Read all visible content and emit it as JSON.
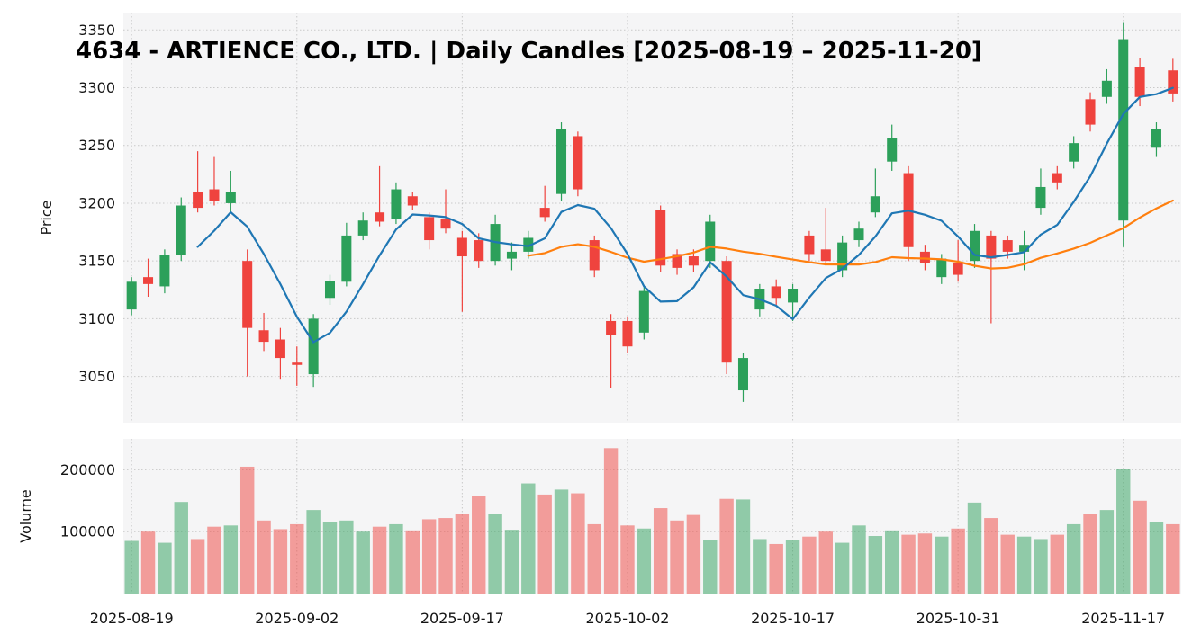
{
  "title": "4634 - ARTIENCE CO., LTD. | Daily Candles [2025-08-19 – 2025-11-20]",
  "axes": {
    "price_label": "Price",
    "volume_label": "Volume",
    "price_ticks": [
      3050,
      3100,
      3150,
      3200,
      3250,
      3300,
      3350
    ],
    "volume_ticks": [
      100000,
      200000
    ],
    "date_ticks": [
      {
        "index": 0,
        "label": "2025-08-19"
      },
      {
        "index": 10,
        "label": "2025-09-02"
      },
      {
        "index": 20,
        "label": "2025-09-17"
      },
      {
        "index": 30,
        "label": "2025-10-02"
      },
      {
        "index": 40,
        "label": "2025-10-17"
      },
      {
        "index": 50,
        "label": "2025-10-31"
      },
      {
        "index": 60,
        "label": "2025-11-17"
      }
    ]
  },
  "style": {
    "up_color": "#2ca05a",
    "down_color": "#ef433e",
    "ma_fast_color": "#1f77b4",
    "ma_slow_color": "#ff7f0e",
    "panel_bg": "#f5f5f6",
    "grid_color": "#c9c9c9",
    "tick_text_color": "#141414",
    "title_color": "#000000",
    "volume_opacity": 0.5
  },
  "chart_data": {
    "type": "candlestick",
    "symbol": "4634",
    "company": "ARTIENCE CO., LTD.",
    "interval": "Daily Candles",
    "date_range": [
      "2025-08-19",
      "2025-11-20"
    ],
    "ylabel": "Price",
    "ylabel_volume": "Volume",
    "ylim_price": [
      3010,
      3365
    ],
    "ylim_volume": [
      0,
      250000
    ],
    "grid": true,
    "overlays": [
      {
        "name": "ma-fast",
        "window": 5
      },
      {
        "name": "ma-slow",
        "window": 25
      }
    ],
    "dates": [
      "2025-08-19",
      "2025-08-20",
      "2025-08-21",
      "2025-08-22",
      "2025-08-25",
      "2025-08-26",
      "2025-08-27",
      "2025-08-28",
      "2025-08-29",
      "2025-09-01",
      "2025-09-02",
      "2025-09-03",
      "2025-09-04",
      "2025-09-05",
      "2025-09-08",
      "2025-09-09",
      "2025-09-10",
      "2025-09-11",
      "2025-09-12",
      "2025-09-16",
      "2025-09-17",
      "2025-09-18",
      "2025-09-19",
      "2025-09-22",
      "2025-09-24",
      "2025-09-25",
      "2025-09-26",
      "2025-09-29",
      "2025-09-30",
      "2025-10-01",
      "2025-10-02",
      "2025-10-03",
      "2025-10-06",
      "2025-10-07",
      "2025-10-08",
      "2025-10-09",
      "2025-10-10",
      "2025-10-14",
      "2025-10-15",
      "2025-10-16",
      "2025-10-17",
      "2025-10-20",
      "2025-10-21",
      "2025-10-22",
      "2025-10-23",
      "2025-10-24",
      "2025-10-27",
      "2025-10-28",
      "2025-10-29",
      "2025-10-30",
      "2025-10-31",
      "2025-11-04",
      "2025-11-05",
      "2025-11-06",
      "2025-11-07",
      "2025-11-10",
      "2025-11-11",
      "2025-11-12",
      "2025-11-13",
      "2025-11-14",
      "2025-11-17",
      "2025-11-18",
      "2025-11-19",
      "2025-11-20"
    ],
    "open": [
      3108,
      3136,
      3128,
      3155,
      3210,
      3212,
      3200,
      3150,
      3090,
      3082,
      3062,
      3052,
      3118,
      3132,
      3172,
      3192,
      3186,
      3206,
      3188,
      3186,
      3170,
      3168,
      3150,
      3152,
      3158,
      3196,
      3208,
      3258,
      3168,
      3098,
      3098,
      3088,
      3194,
      3156,
      3154,
      3150,
      3150,
      3038,
      3108,
      3128,
      3114,
      3172,
      3160,
      3142,
      3168,
      3192,
      3236,
      3226,
      3158,
      3136,
      3148,
      3150,
      3172,
      3168,
      3158,
      3196,
      3226,
      3236,
      3290,
      3292,
      3185,
      3318,
      3248,
      3315
    ],
    "high": [
      3136,
      3152,
      3160,
      3205,
      3245,
      3240,
      3228,
      3160,
      3105,
      3092,
      3076,
      3104,
      3138,
      3183,
      3192,
      3232,
      3218,
      3210,
      3192,
      3212,
      3176,
      3174,
      3190,
      3166,
      3176,
      3215,
      3270,
      3262,
      3172,
      3104,
      3102,
      3128,
      3198,
      3160,
      3160,
      3190,
      3154,
      3070,
      3130,
      3134,
      3130,
      3176,
      3196,
      3172,
      3184,
      3230,
      3268,
      3232,
      3164,
      3156,
      3168,
      3182,
      3176,
      3172,
      3176,
      3230,
      3232,
      3258,
      3296,
      3316,
      3356,
      3326,
      3270,
      3325
    ],
    "low": [
      3103,
      3119,
      3122,
      3150,
      3192,
      3198,
      3192,
      3050,
      3072,
      3048,
      3042,
      3041,
      3112,
      3128,
      3168,
      3180,
      3182,
      3194,
      3160,
      3174,
      3106,
      3144,
      3146,
      3142,
      3152,
      3184,
      3202,
      3206,
      3136,
      3040,
      3070,
      3082,
      3140,
      3138,
      3140,
      3144,
      3052,
      3028,
      3102,
      3112,
      3098,
      3150,
      3146,
      3136,
      3162,
      3188,
      3228,
      3150,
      3142,
      3130,
      3132,
      3144,
      3096,
      3152,
      3142,
      3190,
      3212,
      3230,
      3262,
      3286,
      3162,
      3284,
      3240,
      3288
    ],
    "close": [
      3132,
      3130,
      3155,
      3198,
      3196,
      3202,
      3210,
      3092,
      3080,
      3066,
      3060,
      3100,
      3133,
      3172,
      3185,
      3184,
      3212,
      3198,
      3168,
      3178,
      3154,
      3150,
      3182,
      3158,
      3170,
      3188,
      3264,
      3212,
      3142,
      3086,
      3076,
      3124,
      3146,
      3144,
      3146,
      3184,
      3062,
      3066,
      3126,
      3118,
      3126,
      3156,
      3150,
      3166,
      3178,
      3206,
      3256,
      3162,
      3148,
      3152,
      3138,
      3176,
      3152,
      3158,
      3164,
      3214,
      3218,
      3252,
      3268,
      3306,
      3342,
      3292,
      3264,
      3295
    ],
    "volume": [
      85000,
      100000,
      82000,
      148000,
      88000,
      108000,
      110000,
      205000,
      118000,
      104000,
      112000,
      135000,
      116000,
      118000,
      100000,
      108000,
      112000,
      102000,
      120000,
      122000,
      128000,
      157000,
      128000,
      103000,
      178000,
      160000,
      168000,
      162000,
      112000,
      235000,
      110000,
      105000,
      138000,
      118000,
      127000,
      87000,
      153000,
      152000,
      88000,
      80000,
      86000,
      92000,
      100000,
      82000,
      110000,
      93000,
      102000,
      95000,
      97000,
      92000,
      105000,
      147000,
      122000,
      95000,
      92000,
      88000,
      95000,
      112000,
      128000,
      135000,
      202000,
      150000,
      115000,
      112000
    ]
  }
}
